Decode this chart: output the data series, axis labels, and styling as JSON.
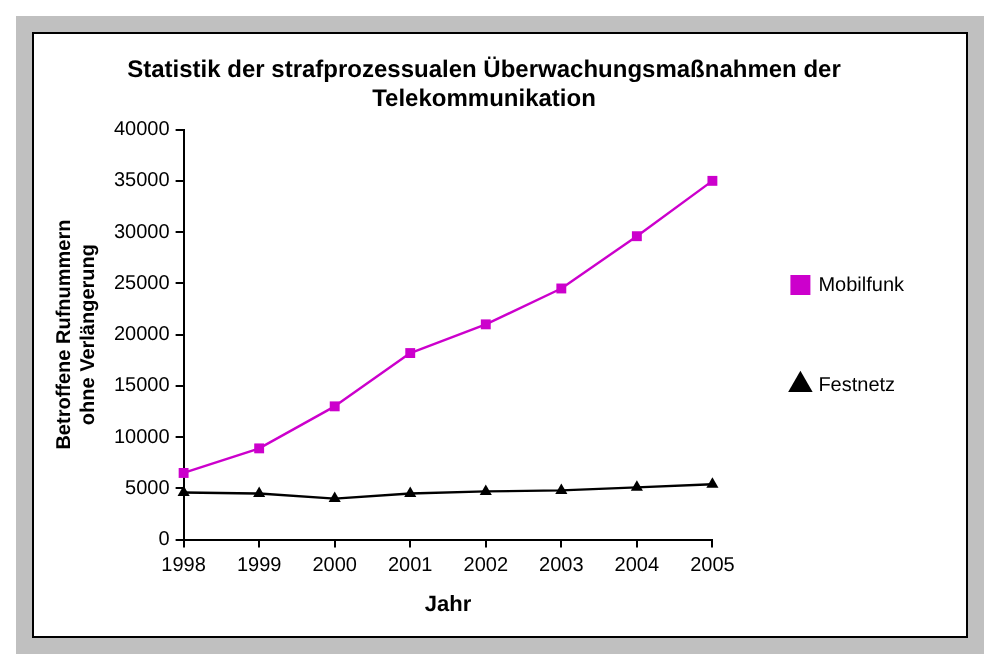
{
  "chart_data": {
    "type": "line",
    "title": "Statistik der strafprozessualen Überwachungsmaßnahmen der Telekommunikation",
    "xlabel": "Jahr",
    "ylabel": "Betroffene Rufnummern\nohne Verlängerung",
    "x": [
      1998,
      1999,
      2000,
      2001,
      2002,
      2003,
      2004,
      2005
    ],
    "series": [
      {
        "name": "Mobilfunk",
        "color": "#cc00cc",
        "marker": "square",
        "values": [
          6500,
          8900,
          13000,
          18200,
          21000,
          24500,
          29600,
          35000
        ]
      },
      {
        "name": "Festnetz",
        "color": "#000000",
        "marker": "triangle",
        "values": [
          4600,
          4500,
          4000,
          4500,
          4700,
          4800,
          5100,
          5400
        ]
      }
    ],
    "xlim": [
      1998,
      2005
    ],
    "xticks": [
      1998,
      1999,
      2000,
      2001,
      2002,
      2003,
      2004,
      2005
    ],
    "ylim": [
      0,
      40000
    ],
    "yticks": [
      0,
      5000,
      10000,
      15000,
      20000,
      25000,
      30000,
      35000,
      40000
    ],
    "grid": false,
    "legend": "right",
    "line_style": "solid"
  }
}
